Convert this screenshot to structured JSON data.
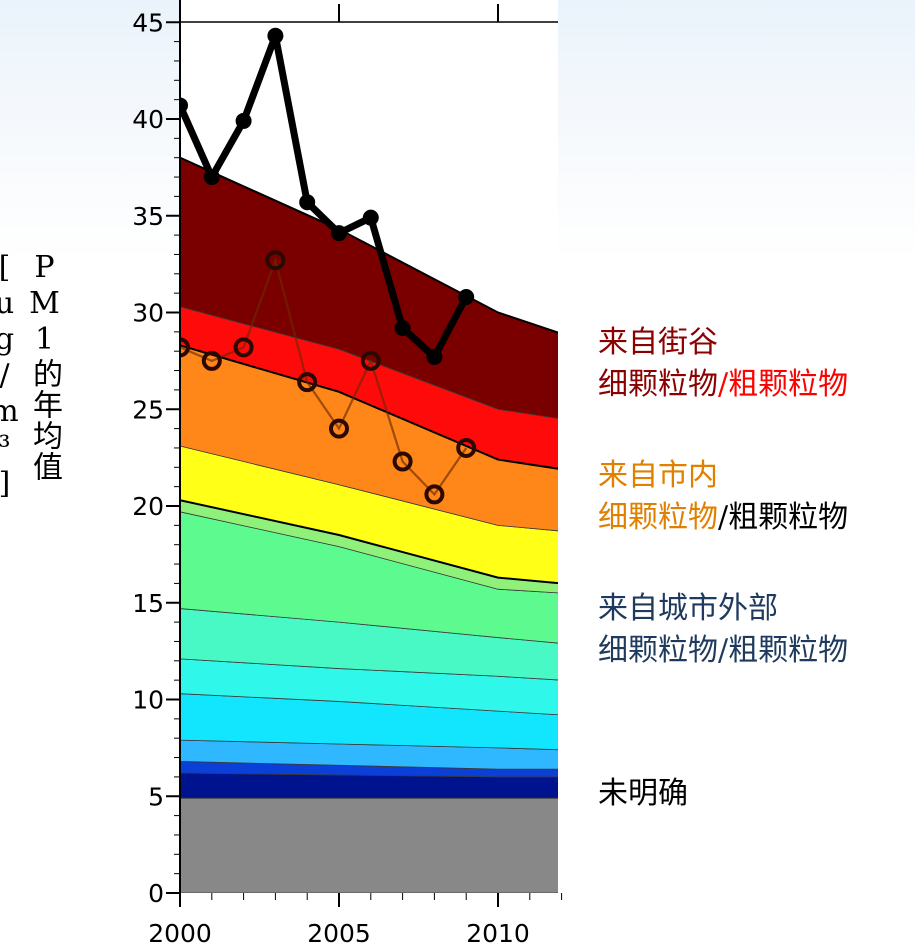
{
  "chart_data": {
    "type": "area",
    "ylabel": "PM1的年均值[ug/m³]",
    "xlabel": "",
    "xlim": [
      2000,
      2012
    ],
    "ylim": [
      0,
      45
    ],
    "x_ticks": [
      2000,
      2005,
      2010
    ],
    "y_ticks": [
      0,
      5,
      10,
      15,
      20,
      25,
      30,
      35,
      40,
      45
    ],
    "x": [
      2000,
      2005,
      2010,
      2012
    ],
    "stacked_boundaries": [
      {
        "color": "#888888",
        "values": [
          4.9,
          4.9,
          4.9,
          4.9
        ]
      },
      {
        "color": "#00138f",
        "values": [
          6.2,
          6.1,
          6.0,
          6.0
        ]
      },
      {
        "color": "#0a3fd8",
        "values": [
          6.8,
          6.6,
          6.4,
          6.4
        ]
      },
      {
        "color": "#2fb7ff",
        "values": [
          7.9,
          7.7,
          7.5,
          7.4
        ]
      },
      {
        "color": "#12e6ff",
        "values": [
          10.3,
          9.9,
          9.4,
          9.2
        ]
      },
      {
        "color": "#2ff7e9",
        "values": [
          12.1,
          11.6,
          11.2,
          11.0
        ]
      },
      {
        "color": "#49f9c5",
        "values": [
          14.7,
          14.0,
          13.2,
          12.9
        ]
      },
      {
        "color": "#5dfb8f",
        "values": [
          19.7,
          17.9,
          15.7,
          15.5
        ]
      },
      {
        "color": "#8ff17a",
        "values": [
          20.3,
          18.5,
          16.3,
          16.0
        ]
      },
      {
        "color": "#ffff18",
        "values": [
          23.1,
          21.1,
          19.0,
          18.7
        ]
      },
      {
        "color": "#ff8618",
        "values": [
          28.3,
          25.9,
          22.4,
          21.9
        ]
      },
      {
        "color": "#ff0a0a",
        "values": [
          30.3,
          28.1,
          25.0,
          24.5
        ]
      },
      {
        "color": "#7a0000",
        "values": [
          38.0,
          34.3,
          30.0,
          28.9
        ]
      }
    ],
    "series": [
      {
        "style": "solid-black-filled-markers",
        "x": [
          2000,
          2001,
          2002,
          2003,
          2004,
          2005,
          2006,
          2007,
          2008,
          2009
        ],
        "values": [
          40.7,
          37.0,
          39.9,
          44.3,
          35.7,
          34.1,
          34.9,
          29.2,
          27.7,
          30.8
        ]
      },
      {
        "style": "thin-brown-open-markers",
        "x": [
          2000,
          2001,
          2002,
          2003,
          2004,
          2005,
          2006,
          2007,
          2008,
          2009
        ],
        "values": [
          28.2,
          27.5,
          28.2,
          32.7,
          26.4,
          24.0,
          27.5,
          22.3,
          20.6,
          23.0
        ]
      }
    ]
  },
  "legend": {
    "street_title": "来自街谷",
    "street_fine": "细颗粒物",
    "street_sep": "/",
    "street_coarse": "粗颗粒物",
    "city_title": "来自市内",
    "city_fine": "细颗粒物",
    "city_sep": "/",
    "city_coarse": "粗颗粒物",
    "outside_title": "来自城市外部",
    "outside_fine": "细颗粒物",
    "outside_sep": "/",
    "outside_coarse": "粗颗粒物",
    "unspecified": "未明确"
  },
  "colors": {
    "street_dark": "#8b0000",
    "street_red": "#ff0000",
    "city_orange": "#e08000",
    "outside_navy": "#1f3a5f",
    "unspecified": "#000000"
  }
}
